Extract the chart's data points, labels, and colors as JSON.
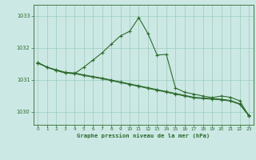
{
  "title": "Graphe pression niveau de la mer (hPa)",
  "bg_color": "#cce8e4",
  "grid_color": "#99ccbb",
  "line_color": "#2d6b2d",
  "xlim": [
    -0.5,
    23.5
  ],
  "ylim": [
    1029.6,
    1033.35
  ],
  "yticks": [
    1030,
    1031,
    1032,
    1033
  ],
  "xticks": [
    0,
    1,
    2,
    3,
    4,
    5,
    6,
    7,
    8,
    9,
    10,
    11,
    12,
    13,
    14,
    15,
    16,
    17,
    18,
    19,
    20,
    21,
    22,
    23
  ],
  "line1_x": [
    0,
    1,
    2,
    3,
    4,
    5,
    6,
    7,
    8,
    9,
    10,
    11,
    12,
    13,
    14,
    15,
    16,
    17,
    18,
    19,
    20,
    21,
    22,
    23
  ],
  "line1_y": [
    1031.53,
    1031.4,
    1031.3,
    1031.22,
    1031.2,
    1031.14,
    1031.09,
    1031.04,
    1030.98,
    1030.92,
    1030.86,
    1030.8,
    1030.74,
    1030.68,
    1030.62,
    1030.56,
    1030.5,
    1030.44,
    1030.42,
    1030.4,
    1030.38,
    1030.34,
    1030.24,
    1029.88
  ],
  "line2_x": [
    0,
    1,
    2,
    3,
    4,
    5,
    6,
    7,
    8,
    9,
    10,
    11,
    12,
    13,
    14,
    15,
    16,
    17,
    18,
    19,
    20,
    21,
    22,
    23
  ],
  "line2_y": [
    1031.55,
    1031.4,
    1031.32,
    1031.24,
    1031.22,
    1031.16,
    1031.11,
    1031.06,
    1031.0,
    1030.94,
    1030.88,
    1030.82,
    1030.76,
    1030.7,
    1030.64,
    1030.58,
    1030.52,
    1030.46,
    1030.44,
    1030.42,
    1030.4,
    1030.36,
    1030.26,
    1029.9
  ],
  "line3_x": [
    0,
    1,
    2,
    3,
    4,
    5,
    6,
    7,
    8,
    9,
    10,
    11,
    12,
    13,
    14,
    15,
    16,
    17,
    18,
    19,
    20,
    21,
    22,
    23
  ],
  "line3_y": [
    1031.53,
    1031.4,
    1031.3,
    1031.22,
    1031.2,
    1031.4,
    1031.62,
    1031.85,
    1032.12,
    1032.38,
    1032.52,
    1032.95,
    1032.45,
    1031.78,
    1031.8,
    1030.75,
    1030.62,
    1030.56,
    1030.5,
    1030.45,
    1030.5,
    1030.46,
    1030.35,
    1029.88
  ]
}
